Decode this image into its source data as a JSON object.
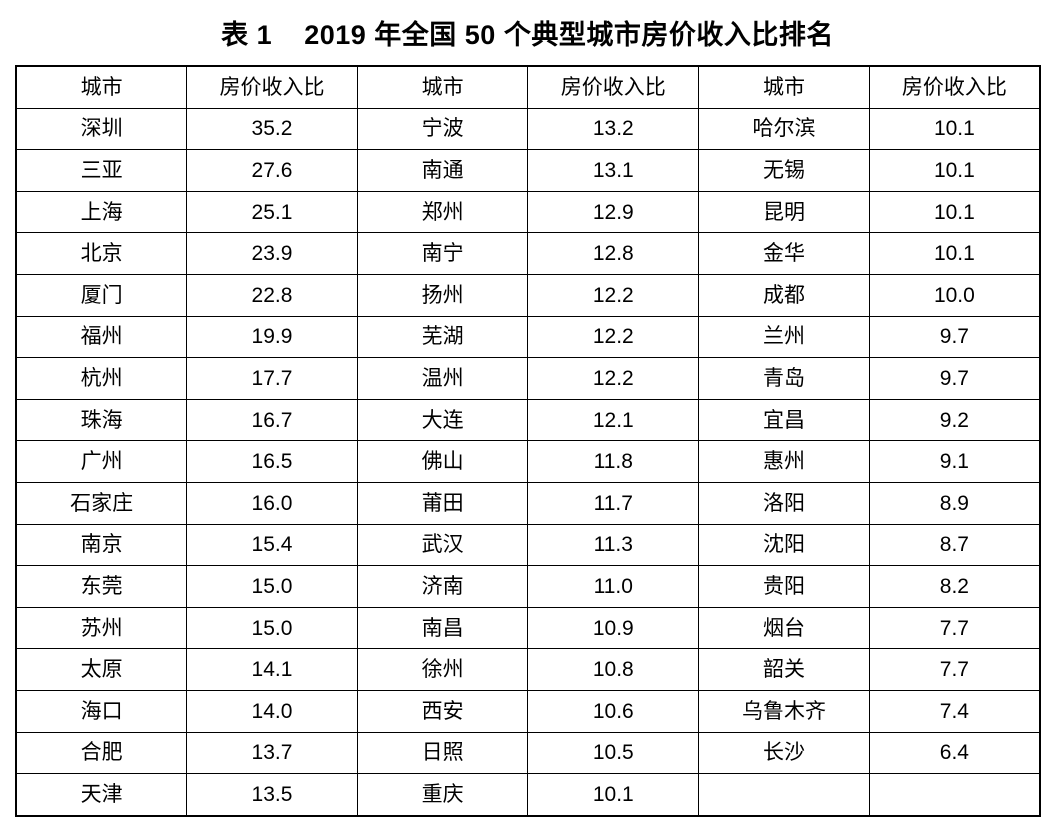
{
  "title": {
    "label": "表 1",
    "text": "2019 年全国 50 个典型城市房价收入比排名"
  },
  "chart_data": {
    "type": "table",
    "title": "表 1 2019 年全国 50 个典型城市房价收入比排名",
    "column_headers": [
      "城市",
      "房价收入比",
      "城市",
      "房价收入比",
      "城市",
      "房价收入比"
    ],
    "rows": [
      [
        "深圳",
        "35.2",
        "宁波",
        "13.2",
        "哈尔滨",
        "10.1"
      ],
      [
        "三亚",
        "27.6",
        "南通",
        "13.1",
        "无锡",
        "10.1"
      ],
      [
        "上海",
        "25.1",
        "郑州",
        "12.9",
        "昆明",
        "10.1"
      ],
      [
        "北京",
        "23.9",
        "南宁",
        "12.8",
        "金华",
        "10.1"
      ],
      [
        "厦门",
        "22.8",
        "扬州",
        "12.2",
        "成都",
        "10.0"
      ],
      [
        "福州",
        "19.9",
        "芜湖",
        "12.2",
        "兰州",
        "9.7"
      ],
      [
        "杭州",
        "17.7",
        "温州",
        "12.2",
        "青岛",
        "9.7"
      ],
      [
        "珠海",
        "16.7",
        "大连",
        "12.1",
        "宜昌",
        "9.2"
      ],
      [
        "广州",
        "16.5",
        "佛山",
        "11.8",
        "惠州",
        "9.1"
      ],
      [
        "石家庄",
        "16.0",
        "莆田",
        "11.7",
        "洛阳",
        "8.9"
      ],
      [
        "南京",
        "15.4",
        "武汉",
        "11.3",
        "沈阳",
        "8.7"
      ],
      [
        "东莞",
        "15.0",
        "济南",
        "11.0",
        "贵阳",
        "8.2"
      ],
      [
        "苏州",
        "15.0",
        "南昌",
        "10.9",
        "烟台",
        "7.7"
      ],
      [
        "太原",
        "14.1",
        "徐州",
        "10.8",
        "韶关",
        "7.7"
      ],
      [
        "海口",
        "14.0",
        "西安",
        "10.6",
        "乌鲁木齐",
        "7.4"
      ],
      [
        "合肥",
        "13.7",
        "日照",
        "10.5",
        "长沙",
        "6.4"
      ],
      [
        "天津",
        "13.5",
        "重庆",
        "10.1",
        "",
        ""
      ]
    ]
  }
}
